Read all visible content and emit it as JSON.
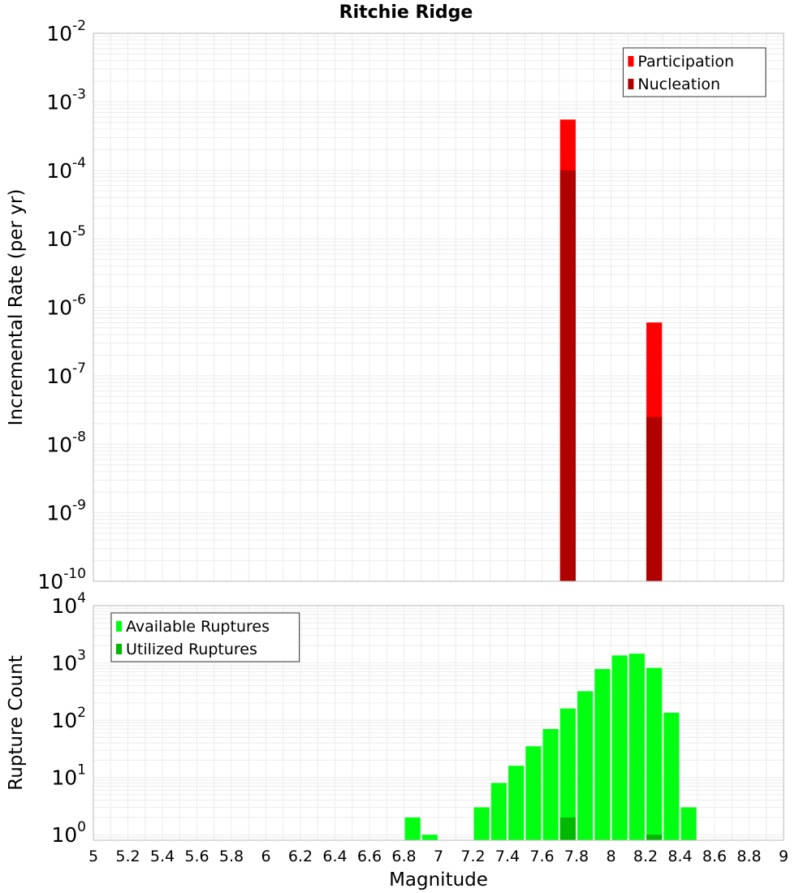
{
  "chart_data": [
    {
      "type": "bar",
      "title": "Ritchie Ridge",
      "ylabel": "Incremental Rate (per yr)",
      "xlim": [
        5,
        9
      ],
      "ylim": [
        1e-10,
        0.01
      ],
      "yscale": "log",
      "grid": true,
      "legend_position": "top-right",
      "y_ticks": [
        {
          "base": "10",
          "exp": "-10"
        },
        {
          "base": "10",
          "exp": "-9"
        },
        {
          "base": "10",
          "exp": "-8"
        },
        {
          "base": "10",
          "exp": "-7"
        },
        {
          "base": "10",
          "exp": "-6"
        },
        {
          "base": "10",
          "exp": "-5"
        },
        {
          "base": "10",
          "exp": "-4"
        },
        {
          "base": "10",
          "exp": "-3"
        },
        {
          "base": "10",
          "exp": "-2"
        }
      ],
      "bar_width": 0.09,
      "series": [
        {
          "name": "Participation",
          "color": "#ff0000",
          "x": [
            7.75,
            8.25
          ],
          "values": [
            0.00055,
            6e-07
          ]
        },
        {
          "name": "Nucleation",
          "color": "#b00000",
          "x": [
            7.75,
            8.25
          ],
          "values": [
            0.0001,
            2.5e-08
          ]
        }
      ]
    },
    {
      "type": "bar",
      "xlabel": "Magnitude",
      "ylabel": "Rupture Count",
      "xlim": [
        5,
        9
      ],
      "ylim": [
        0.8,
        10000
      ],
      "yscale": "log",
      "grid": true,
      "legend_position": "top-left",
      "x_ticks": [
        "5",
        "5.2",
        "5.4",
        "5.6",
        "5.8",
        "6",
        "6.2",
        "6.4",
        "6.6",
        "6.8",
        "7",
        "7.2",
        "7.4",
        "7.6",
        "7.8",
        "8",
        "8.2",
        "8.4",
        "8.6",
        "8.8",
        "9"
      ],
      "y_ticks": [
        {
          "base": "10",
          "exp": "0"
        },
        {
          "base": "10",
          "exp": "1"
        },
        {
          "base": "10",
          "exp": "2"
        },
        {
          "base": "10",
          "exp": "3"
        },
        {
          "base": "10",
          "exp": "4"
        }
      ],
      "bar_width": 0.09,
      "series": [
        {
          "name": "Available Ruptures",
          "color": "#00ff11",
          "x": [
            6.85,
            6.95,
            7.25,
            7.35,
            7.45,
            7.55,
            7.65,
            7.75,
            7.85,
            7.95,
            8.05,
            8.15,
            8.25,
            8.35,
            8.45
          ],
          "values": [
            2,
            1,
            3,
            8,
            16,
            35,
            70,
            160,
            320,
            780,
            1350,
            1450,
            820,
            135,
            3
          ]
        },
        {
          "name": "Utilized Ruptures",
          "color": "#00b800",
          "x": [
            7.75,
            8.25
          ],
          "values": [
            2,
            1
          ]
        }
      ]
    }
  ]
}
